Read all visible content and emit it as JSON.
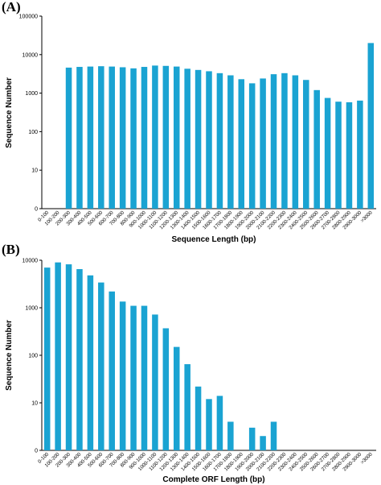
{
  "colors": {
    "bar": "#1aa3d2",
    "axis": "#000000"
  },
  "chart_data": [
    {
      "panel": "(A)",
      "type": "bar",
      "yscale": "log",
      "ylim": [
        1,
        100000
      ],
      "yticks": [
        1,
        10,
        100,
        1000,
        10000,
        100000
      ],
      "ytick_labels": [
        "0",
        "10",
        "100",
        "1000",
        "10000",
        "100000"
      ],
      "xlabel": "Sequence Length (bp)",
      "ylabel": "Sequence Number",
      "categories": [
        "0-100",
        "100-200",
        "200-300",
        "300-400",
        "400-500",
        "500-600",
        "600-700",
        "700-800",
        "800-900",
        "900-1000",
        "1000-1100",
        "1100-1200",
        "1200-1300",
        "1300-1400",
        "1400-1500",
        "1500-1600",
        "1600-1700",
        "1700-1800",
        "1800-1900",
        "1900-2000",
        "2000-2100",
        "2100-2200",
        "2200-2300",
        "2300-2400",
        "2400-2500",
        "2500-2600",
        "2600-2700",
        "2700-2800",
        "2800-2900",
        "2900-3000",
        ">3000"
      ],
      "values": [
        0,
        0,
        4600,
        4800,
        4900,
        5000,
        4900,
        4700,
        4400,
        4800,
        5200,
        5100,
        4900,
        4300,
        4000,
        3700,
        3300,
        2900,
        2300,
        1800,
        2400,
        3100,
        3300,
        2900,
        2200,
        1200,
        750,
        600,
        580,
        640,
        20000
      ]
    },
    {
      "panel": "(B)",
      "type": "bar",
      "yscale": "log",
      "ylim": [
        1,
        10000
      ],
      "yticks": [
        1,
        10,
        100,
        1000,
        10000
      ],
      "ytick_labels": [
        "0",
        "10",
        "100",
        "1000",
        "10000"
      ],
      "xlabel": "Complete ORF Length (bp)",
      "ylabel": "Sequence Number",
      "categories": [
        "0-100",
        "100-200",
        "200-300",
        "300-400",
        "400-500",
        "500-600",
        "600-700",
        "700-800",
        "800-900",
        "900-1000",
        "1000-1100",
        "1100-1200",
        "1200-1300",
        "1300-1400",
        "1400-1500",
        "1500-1600",
        "1600-1700",
        "1700-1800",
        "1800-1900",
        "1900-2000",
        "2000-2100",
        "2100-2200",
        "2200-2300",
        "2300-2400",
        "2400-2500",
        "2500-2600",
        "2600-2700",
        "2700-2800",
        "2800-2900",
        "2900-3000",
        ">3000"
      ],
      "values": [
        7000,
        9000,
        8200,
        6500,
        4800,
        3400,
        2200,
        1350,
        1100,
        1100,
        720,
        370,
        150,
        65,
        22,
        12,
        14,
        4,
        0,
        3,
        2,
        4,
        0,
        0,
        0,
        0,
        0,
        0,
        0,
        0,
        0
      ]
    }
  ]
}
